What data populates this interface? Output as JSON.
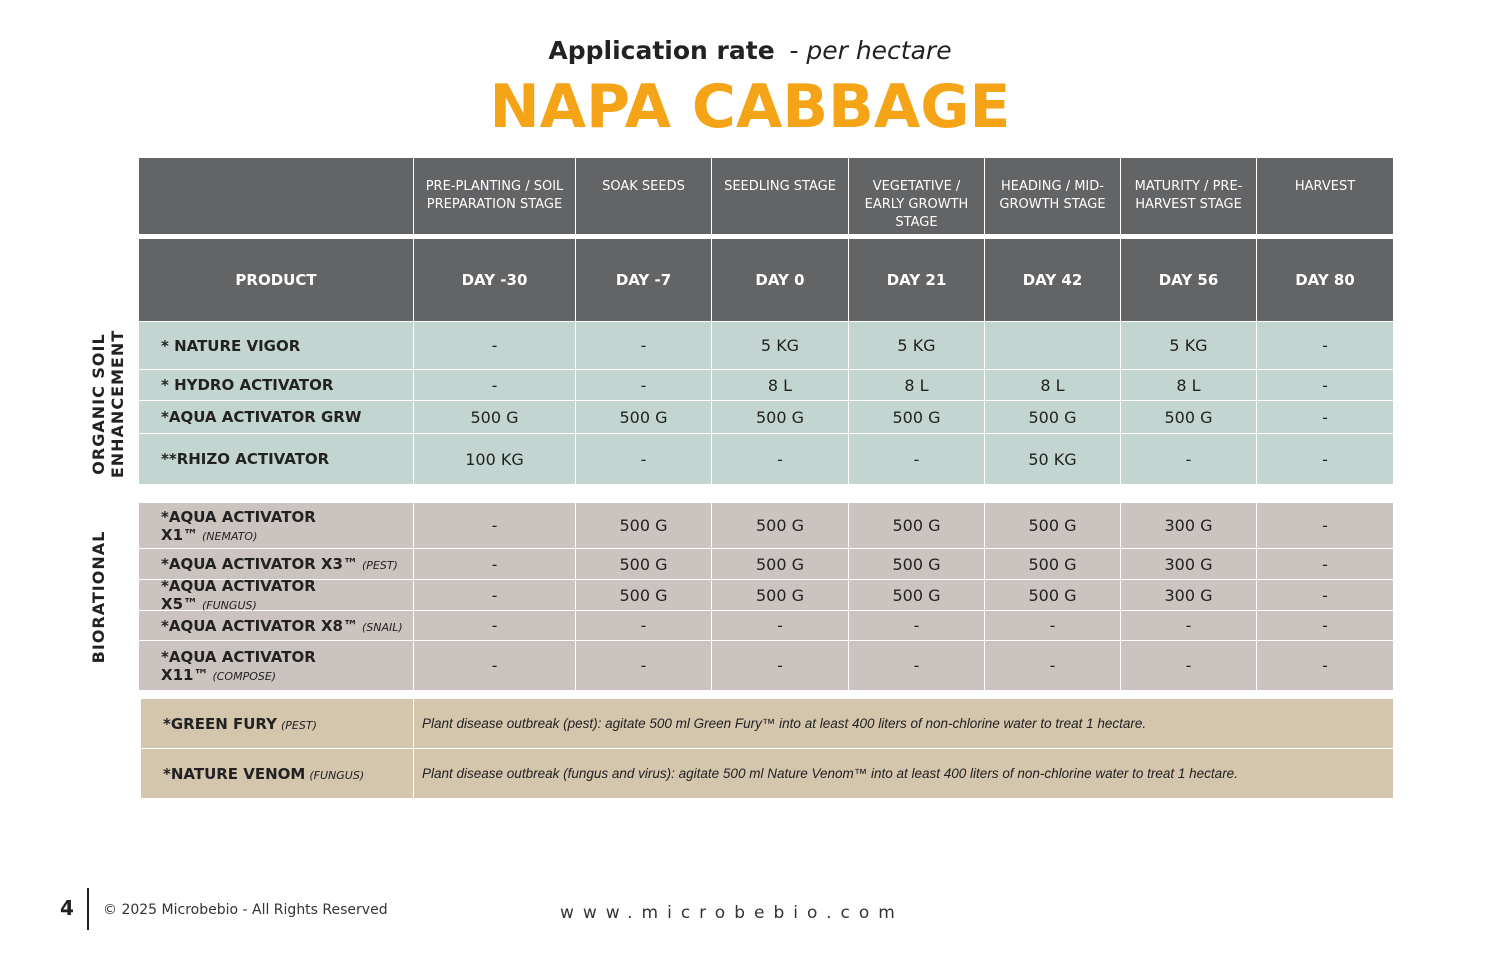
{
  "header": {
    "title": "Application rate",
    "subtitle": "- per hectare",
    "heading": "NAPA CABBAGE"
  },
  "table": {
    "stages": [
      "PRE-PLANTING / SOIL PREPARATION STAGE",
      "SOAK SEEDS",
      "SEEDLING STAGE",
      "VEGETATIVE / EARLY GROWTH STAGE",
      "HEADING / MID-GROWTH STAGE",
      "MATURITY / PRE-HARVEST STAGE",
      "HARVEST"
    ],
    "product_label": "PRODUCT",
    "days": [
      "DAY -30",
      "DAY -7",
      "DAY 0",
      "DAY 21",
      "DAY 42",
      "DAY 56",
      "DAY 80"
    ],
    "groups": [
      {
        "label": "ORGANIC SOIL ENHANCEMENT",
        "rows": [
          {
            "product": "* NATURE VIGOR",
            "cells": [
              "-",
              "-",
              "5 KG",
              "5 KG",
              null,
              "5 KG",
              "-"
            ]
          },
          {
            "product": "* HYDRO ACTIVATOR",
            "cells": [
              "-",
              "-",
              "8 L",
              "8 L",
              "8 L",
              "8 L",
              "-"
            ]
          },
          {
            "product": "*AQUA ACTIVATOR GRW",
            "cells": [
              "500 G",
              "500 G",
              "500 G",
              "500 G",
              "500 G",
              "500 G",
              "-"
            ]
          },
          {
            "product": "**RHIZO ACTIVATOR",
            "cells": [
              "100 KG",
              "-",
              "-",
              "-",
              "50 KG",
              "-",
              "-"
            ]
          }
        ]
      },
      {
        "label": "BIORATIONAL",
        "rows": [
          {
            "product": "*AQUA ACTIVATOR X1™",
            "note": "(NEMATO)",
            "cells": [
              "-",
              "500 G",
              "500 G",
              "500 G",
              "500 G",
              "300 G",
              "-"
            ]
          },
          {
            "product": "*AQUA ACTIVATOR X3™",
            "note": "(PEST)",
            "cells": [
              "-",
              "500 G",
              "500 G",
              "500 G",
              "500 G",
              "300 G",
              "-"
            ]
          },
          {
            "product": "*AQUA ACTIVATOR X5™",
            "note": "(FUNGUS)",
            "cells": [
              "-",
              "500 G",
              "500 G",
              "500 G",
              "500 G",
              "300 G",
              "-"
            ]
          },
          {
            "product": "*AQUA ACTIVATOR X8™",
            "note": "(SNAIL)",
            "cells": [
              "-",
              "-",
              "-",
              "-",
              "-",
              "-",
              "-"
            ]
          },
          {
            "product": "*AQUA ACTIVATOR X11™",
            "note": "(COMPOSE)",
            "cells": [
              "-",
              "-",
              "-",
              "-",
              "-",
              "-",
              "-"
            ]
          }
        ]
      }
    ],
    "treatments": [
      {
        "product": "*GREEN FURY",
        "note": "(PEST)",
        "instructions": "Plant disease outbreak (pest): agitate 500 ml Green Fury™ into at least 400 liters of non-chlorine water to treat 1 hectare."
      },
      {
        "product": "*NATURE VENOM",
        "note": "(FUNGUS)",
        "instructions": "Plant disease outbreak (fungus and virus): agitate 500 ml Nature Venom™ into at least 400 liters of non-chlorine water to treat 1 hectare."
      }
    ]
  },
  "footer": {
    "page": "4",
    "copyright": "© 2025 Microbebio - All Rights Reserved",
    "website": "www.microbebio.com"
  }
}
